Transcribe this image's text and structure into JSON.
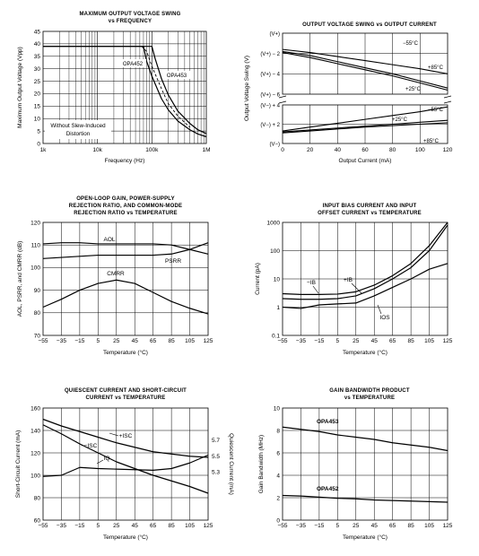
{
  "chart_data": [
    {
      "id": "c1",
      "type": "line",
      "title": "MAXIMUM OUTPUT VOLTAGE SWING",
      "subtitle": "vs FREQUENCY",
      "xlabel": "Frequency (Hz)",
      "ylabel": "Maximum Output Voltage (Vpp)",
      "xscale": "log",
      "xlim": [
        1000,
        1000000
      ],
      "ylim": [
        0,
        45
      ],
      "xticks": [
        1000,
        10000,
        100000,
        1000000
      ],
      "xtick_labels": [
        "1k",
        "10k",
        "100k",
        "1M"
      ],
      "yticks": [
        0,
        5,
        10,
        15,
        20,
        25,
        30,
        35,
        40,
        45
      ],
      "ytick_labels": [
        "0",
        "5",
        "10",
        "15",
        "20",
        "25",
        "30",
        "35",
        "40",
        "45"
      ],
      "grid": true,
      "series": [
        {
          "name": "OPA452",
          "style": "solid",
          "x": [
            1000,
            70000,
            80000,
            100000,
            150000,
            200000,
            300000,
            500000,
            700000,
            1000000
          ],
          "y": [
            39,
            39,
            33,
            27,
            18,
            13.5,
            9,
            5.5,
            3.8,
            2.7
          ]
        },
        {
          "name": "OPA453",
          "style": "solid",
          "x": [
            1000,
            100000,
            115000,
            150000,
            200000,
            300000,
            500000,
            700000,
            1000000
          ],
          "y": [
            39,
            39,
            34,
            26,
            19.5,
            13,
            8,
            5.5,
            4
          ]
        },
        {
          "name": "Without Slew-Induced Distortion",
          "style": "dashed",
          "x": [
            65000,
            80000,
            100000,
            150000,
            200000,
            300000,
            500000
          ],
          "y": [
            39,
            37,
            31,
            22,
            16,
            11,
            6.5
          ]
        }
      ],
      "annotations": [
        "OPA452",
        "OPA453",
        "Without Slew-Induced",
        "Distortion"
      ]
    },
    {
      "id": "c2",
      "type": "line",
      "title": "OUTPUT VOLTAGE SWING vs OUTPUT CURRENT",
      "xlabel": "Output Current (mA)",
      "ylabel": "Output Voltage Swing (V)",
      "xlim": [
        0,
        120
      ],
      "xticks": [
        0,
        20,
        40,
        60,
        80,
        100,
        120
      ],
      "ytick_labels_top": [
        "(V+)",
        "(V+) − 2",
        "(V+) − 4",
        "(V+) − 6"
      ],
      "ytick_labels_bottom": [
        "(V−) + 4",
        "(V−) + 2",
        "(V−)"
      ],
      "grid": true,
      "series": [
        {
          "name": "−55°C",
          "panel": "top",
          "x": [
            0,
            20,
            40,
            60,
            80,
            100,
            120
          ],
          "y": [
            -1.6,
            -1.9,
            -2.3,
            -2.7,
            -3.1,
            -3.5,
            -4.0
          ]
        },
        {
          "name": "+85°C",
          "panel": "top",
          "x": [
            0,
            20,
            40,
            60,
            80,
            100,
            120
          ],
          "y": [
            -1.8,
            -2.2,
            -2.8,
            -3.4,
            -4.0,
            -4.7,
            -5.4
          ]
        },
        {
          "name": "+25°C",
          "panel": "top",
          "x": [
            0,
            20,
            40,
            60,
            80,
            100,
            120
          ],
          "y": [
            -1.9,
            -2.4,
            -3.0,
            -3.6,
            -4.2,
            -4.9,
            -5.6
          ]
        },
        {
          "name": "−55°C",
          "panel": "bottom",
          "x": [
            0,
            20,
            40,
            60,
            80,
            100,
            120
          ],
          "y": [
            1.3,
            1.7,
            2.1,
            2.5,
            2.9,
            3.3,
            3.8
          ]
        },
        {
          "name": "+25°C",
          "panel": "bottom",
          "x": [
            0,
            20,
            40,
            60,
            80,
            100,
            120
          ],
          "y": [
            1.2,
            1.4,
            1.6,
            1.8,
            2.0,
            2.2,
            2.4
          ]
        },
        {
          "name": "+85°C",
          "panel": "bottom",
          "x": [
            0,
            20,
            40,
            60,
            80,
            100,
            120
          ],
          "y": [
            1.1,
            1.3,
            1.5,
            1.7,
            1.85,
            2.0,
            2.15
          ]
        }
      ],
      "annotations": [
        "−55°C",
        "+85°C",
        "+25°C",
        "−55°C",
        "+25°C",
        "+85°C"
      ]
    },
    {
      "id": "c3",
      "type": "line",
      "title": "OPEN-LOOP GAIN, POWER-SUPPLY",
      "subtitle": "REJECTION RATIO, AND COMMON-MODE",
      "subtitle2": "REJECTION RATIO vs TEMPERATURE",
      "xlabel": "Temperature (°C)",
      "ylabel": "AOL, PSRR, and CMRR (dB)",
      "xlim": [
        -55,
        125
      ],
      "ylim": [
        70,
        120
      ],
      "xticks": [
        -55,
        -35,
        -15,
        5,
        25,
        45,
        65,
        85,
        105,
        125
      ],
      "yticks": [
        70,
        80,
        90,
        100,
        110,
        120
      ],
      "grid": true,
      "series": [
        {
          "name": "AOL",
          "x": [
            -55,
            -35,
            -15,
            5,
            25,
            45,
            65,
            85,
            105,
            125
          ],
          "y": [
            110.5,
            111,
            111,
            110.5,
            110.5,
            110.5,
            110.5,
            110,
            108,
            106
          ]
        },
        {
          "name": "PSRR",
          "x": [
            -55,
            -35,
            -15,
            5,
            25,
            45,
            65,
            85,
            105,
            125
          ],
          "y": [
            104,
            104.5,
            105,
            105.5,
            105.5,
            105.5,
            105.5,
            106,
            108,
            111
          ]
        },
        {
          "name": "CMRR",
          "x": [
            -55,
            -35,
            -15,
            5,
            25,
            45,
            65,
            85,
            105,
            125
          ],
          "y": [
            82.5,
            86,
            90,
            93,
            94.5,
            93,
            89,
            85,
            82,
            79.5
          ]
        }
      ],
      "annotations": [
        "AOL",
        "PSRR",
        "CMRR"
      ]
    },
    {
      "id": "c4",
      "type": "line",
      "title": "INPUT BIAS CURRENT AND INPUT",
      "subtitle": "OFFSET CURRENT vs TEMPERATURE",
      "xlabel": "Temperature (°C)",
      "ylabel": "Current (pA)",
      "yscale": "log",
      "xlim": [
        -55,
        125
      ],
      "ylim": [
        0.1,
        1000
      ],
      "xticks": [
        -55,
        -35,
        -15,
        5,
        25,
        45,
        65,
        85,
        105,
        125
      ],
      "yticks": [
        0.1,
        1,
        10,
        100,
        1000
      ],
      "ytick_labels": [
        "0.1",
        "1",
        "10",
        "100",
        "1000"
      ],
      "grid": true,
      "series": [
        {
          "name": "-IB",
          "x": [
            -55,
            -35,
            -15,
            5,
            25,
            45,
            65,
            85,
            105,
            125
          ],
          "y": [
            3,
            2.8,
            2.8,
            2.9,
            3.5,
            6,
            13,
            35,
            150,
            1000
          ]
        },
        {
          "name": "+IB",
          "x": [
            -55,
            -35,
            -15,
            5,
            25,
            45,
            65,
            85,
            105,
            125
          ],
          "y": [
            2,
            1.9,
            1.9,
            2.0,
            2.5,
            4.5,
            10,
            25,
            100,
            800
          ]
        },
        {
          "name": "IOS",
          "x": [
            -55,
            -35,
            -15,
            5,
            25,
            45,
            65,
            85,
            105,
            125
          ],
          "y": [
            1,
            0.9,
            1.2,
            1.3,
            1.4,
            2.5,
            5,
            10,
            22,
            35
          ]
        }
      ],
      "annotations": [
        "−IB",
        "+IB",
        "IOS"
      ]
    },
    {
      "id": "c5",
      "type": "line",
      "title": "QUIESCENT CURRENT AND SHORT-CIRCUIT",
      "subtitle": "CURRENT vs TEMPERATURE",
      "xlabel": "Temperature (°C)",
      "ylabel": "Short-Circuit Current (mA)",
      "ylabel_right": "Quiescent Current (mA)",
      "xlim": [
        -55,
        125
      ],
      "ylim": [
        60,
        160
      ],
      "ylim_right": [
        4.7,
        6.1
      ],
      "xticks": [
        -55,
        -35,
        -15,
        5,
        25,
        45,
        65,
        85,
        105,
        125
      ],
      "yticks": [
        60,
        80,
        100,
        120,
        140,
        160
      ],
      "yticks_right": [
        5.3,
        5.5,
        5.7
      ],
      "grid": true,
      "series": [
        {
          "name": "+ISC",
          "axis": "left",
          "x": [
            -55,
            -35,
            -15,
            5,
            25,
            45,
            65,
            85,
            105,
            125
          ],
          "y": [
            150,
            144,
            139,
            134,
            129,
            125,
            121,
            119,
            117,
            116
          ]
        },
        {
          "name": "−ISC",
          "axis": "left",
          "x": [
            -55,
            -35,
            -15,
            5,
            25,
            45,
            65,
            85,
            105,
            125
          ],
          "y": [
            145,
            137,
            128,
            120,
            112,
            106,
            100,
            95,
            90,
            84
          ]
        },
        {
          "name": "IQ",
          "axis": "left",
          "x": [
            -55,
            -35,
            -15,
            5,
            25,
            45,
            65,
            85,
            105,
            125
          ],
          "y": [
            99,
            100,
            107,
            106,
            105.5,
            105,
            104.5,
            106,
            111,
            118
          ]
        }
      ],
      "annotations": [
        "+ISC",
        "−ISC",
        "IQ"
      ]
    },
    {
      "id": "c6",
      "type": "line",
      "title": "GAIN BANDWIDTH PRODUCT",
      "subtitle": "vs TEMPERATURE",
      "xlabel": "Temperature (°C)",
      "ylabel": "Gain Bandwidth (MHz)",
      "xlim": [
        -55,
        125
      ],
      "ylim": [
        0,
        10
      ],
      "xticks": [
        -55,
        -35,
        -15,
        5,
        25,
        45,
        65,
        85,
        105,
        125
      ],
      "yticks": [
        0,
        2,
        4,
        6,
        8,
        10
      ],
      "grid": true,
      "series": [
        {
          "name": "OPA453",
          "x": [
            -55,
            -35,
            -15,
            5,
            25,
            45,
            65,
            85,
            105,
            125
          ],
          "y": [
            8.3,
            8.1,
            7.9,
            7.6,
            7.4,
            7.2,
            6.9,
            6.7,
            6.5,
            6.2
          ]
        },
        {
          "name": "OPA452",
          "x": [
            -55,
            -35,
            -15,
            5,
            25,
            45,
            65,
            85,
            105,
            125
          ],
          "y": [
            2.2,
            2.15,
            2.05,
            1.95,
            1.9,
            1.8,
            1.75,
            1.7,
            1.65,
            1.6
          ]
        }
      ],
      "annotations": [
        "OPA453",
        "OPA452"
      ]
    }
  ]
}
